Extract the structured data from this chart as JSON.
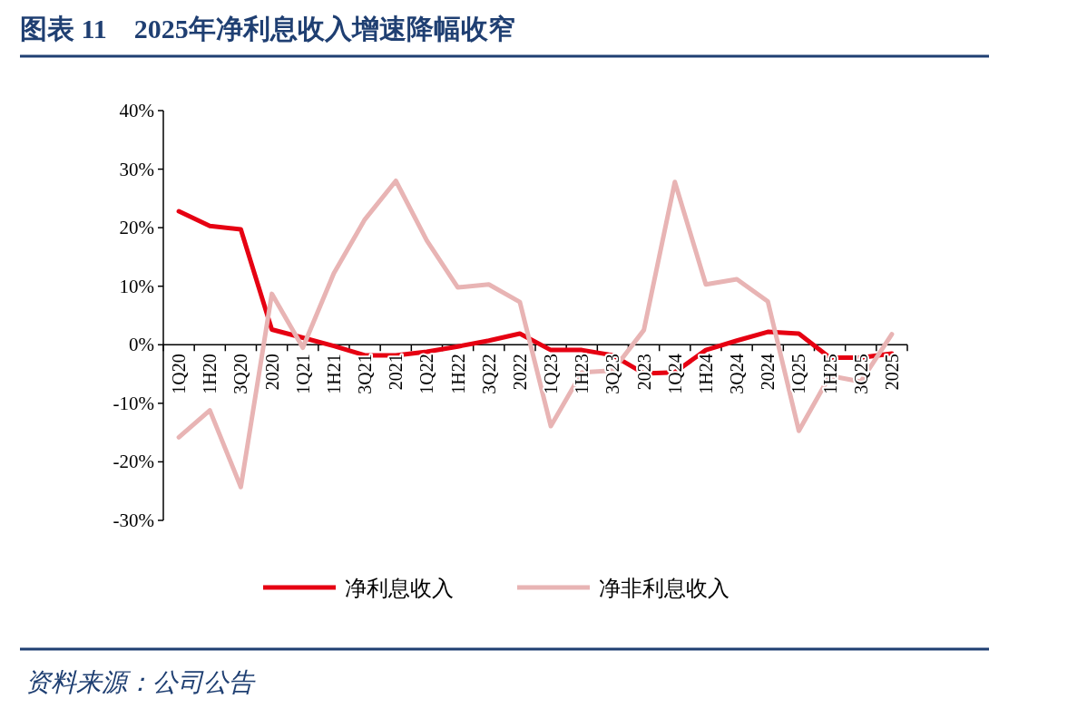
{
  "chart_data": {
    "type": "line",
    "title": "图表 11　2025年净利息收入增速降幅收窄",
    "categories": [
      "1Q20",
      "1H20",
      "3Q20",
      "2020",
      "1Q21",
      "1H21",
      "3Q21",
      "2021",
      "1Q22",
      "1H22",
      "3Q22",
      "2022",
      "1Q23",
      "1H23",
      "3Q23",
      "2023",
      "1Q24",
      "1H24",
      "3Q24",
      "2024",
      "1Q25",
      "1H25",
      "3Q25",
      "2025"
    ],
    "series": [
      {
        "name": "净利息收入",
        "color": "#e60012",
        "values": [
          22.8,
          20.3,
          19.7,
          2.6,
          1.2,
          -0.2,
          -1.8,
          -1.8,
          -1.2,
          -0.3,
          0.7,
          1.9,
          -0.9,
          -0.9,
          -1.8,
          -4.9,
          -4.7,
          -0.9,
          0.7,
          2.2,
          1.9,
          -2.2,
          -2.2,
          -1.5
        ]
      },
      {
        "name": "净非利息收入",
        "color": "#e8b4b4",
        "values": [
          -15.8,
          -11.2,
          -24.3,
          8.7,
          -0.5,
          12.2,
          21.4,
          28.0,
          17.8,
          9.8,
          10.3,
          7.3,
          -13.9,
          -4.7,
          -4.4,
          2.5,
          27.8,
          10.3,
          11.2,
          7.4,
          -14.7,
          -5.3,
          -6.3,
          1.8
        ]
      }
    ],
    "ylim": [
      -30,
      40
    ],
    "yticks": [
      {
        "value": 40,
        "label": "40%"
      },
      {
        "value": 30,
        "label": "30%"
      },
      {
        "value": 20,
        "label": "20%"
      },
      {
        "value": 10,
        "label": "10%"
      },
      {
        "value": 0,
        "label": "0%"
      },
      {
        "value": -10,
        "label": "-10%"
      },
      {
        "value": -20,
        "label": "-20%"
      },
      {
        "value": -30,
        "label": "-30%"
      }
    ],
    "grid": false,
    "legend": "bottom",
    "marker": "none",
    "line_style": "solid",
    "annotations": [
      "资料来源：公司公告"
    ]
  }
}
